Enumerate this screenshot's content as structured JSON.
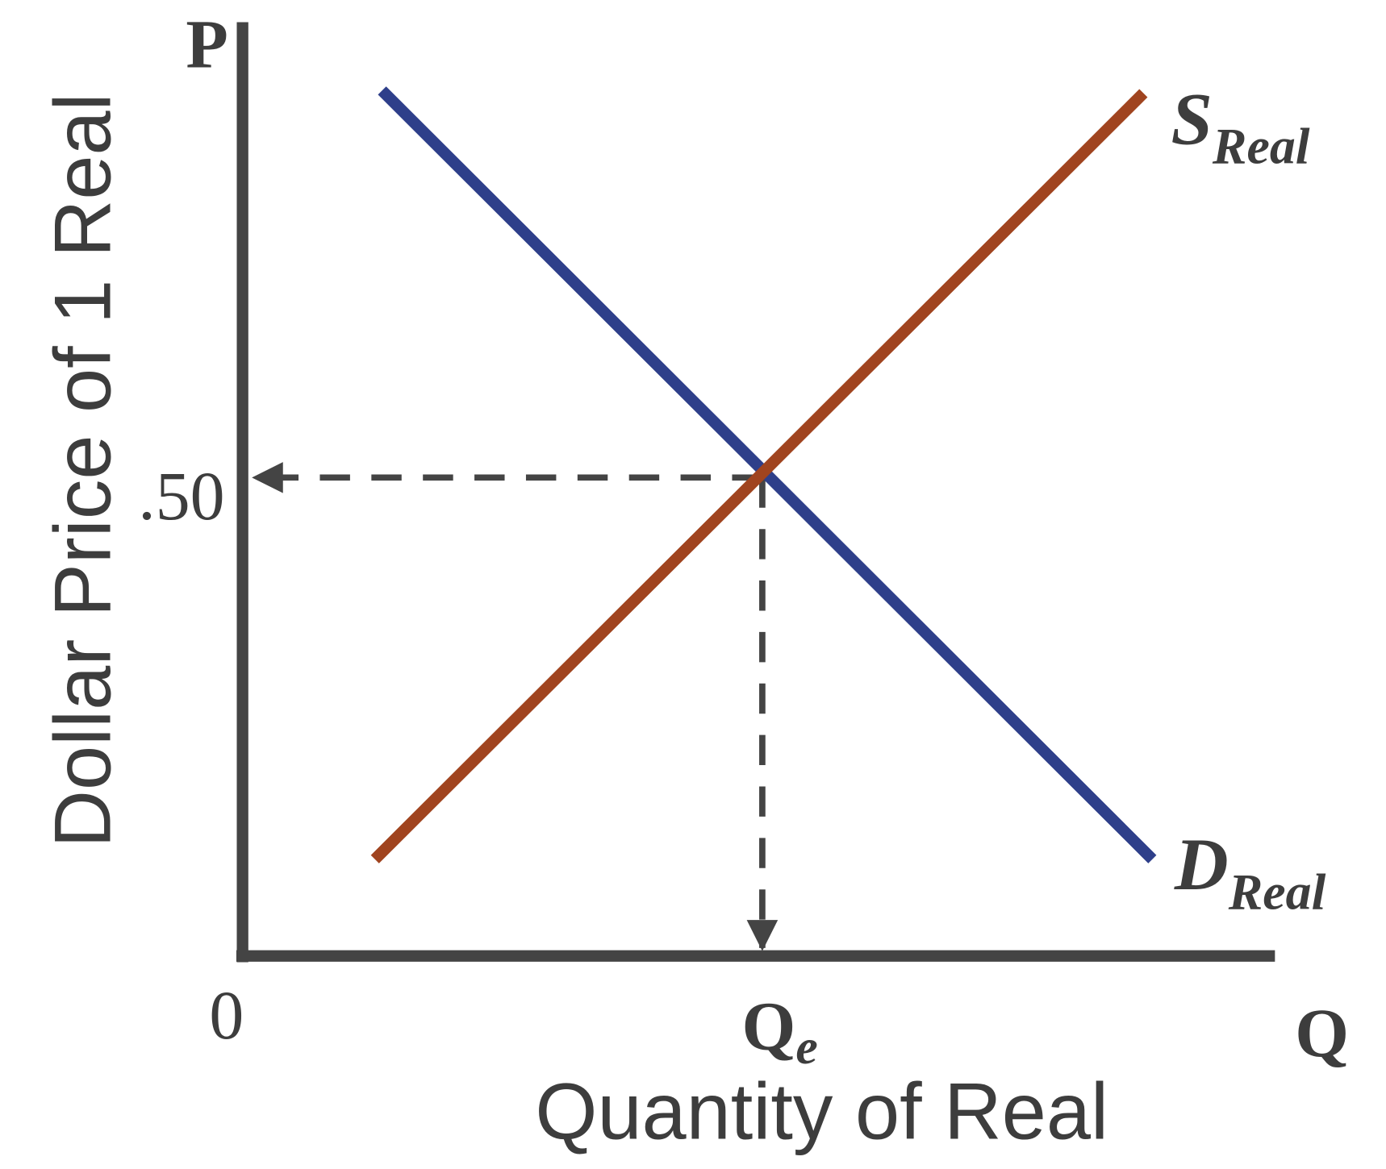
{
  "diagram": {
    "y_axis_letter": "P",
    "x_axis_letter": "Q",
    "origin_label": "0",
    "price_label": ".50",
    "equilibrium_quantity": {
      "main": "Q",
      "sub": "e"
    },
    "supply_label": {
      "main": "S",
      "sub": "Real"
    },
    "demand_label": {
      "main": "D",
      "sub": "Real"
    },
    "y_axis_title": "Dollar Price of 1 Real",
    "x_axis_title": "Quantity of Real"
  }
}
